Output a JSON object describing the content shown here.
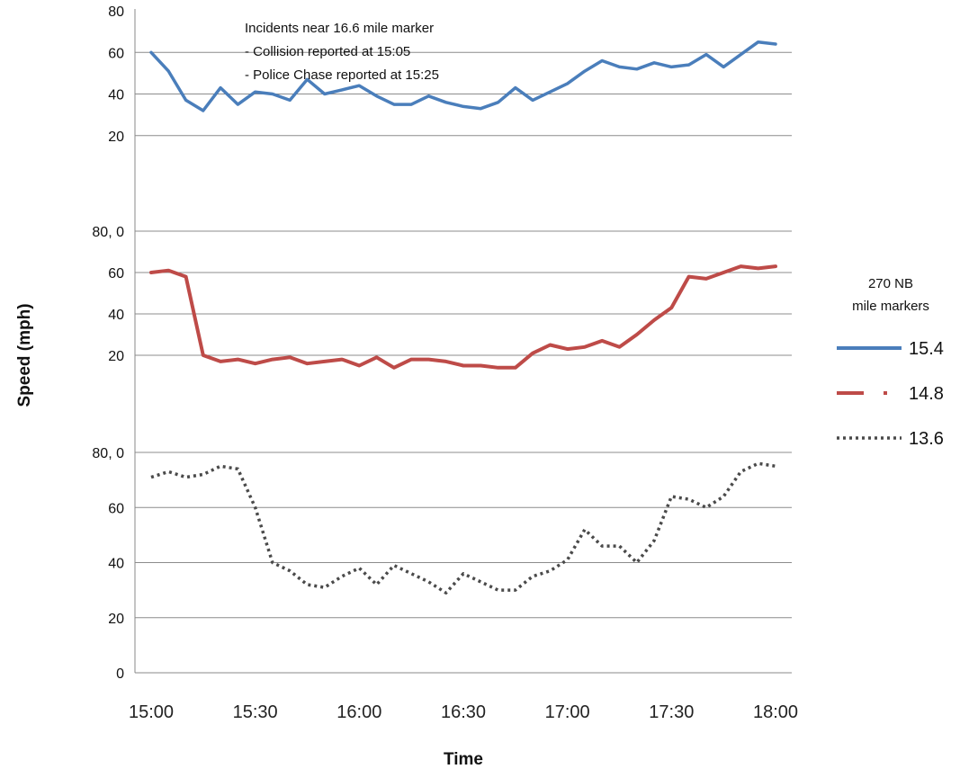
{
  "chart_data": {
    "type": "line",
    "xlabel": "Time",
    "ylabel": "Speed (mph)",
    "x_tick_labels": [
      "15:00",
      "15:30",
      "16:00",
      "16:30",
      "17:00",
      "17:30",
      "18:00"
    ],
    "x_tick_minutes": [
      0,
      30,
      60,
      90,
      120,
      150,
      180
    ],
    "x_range_minutes": [
      0,
      180
    ],
    "y_range": [
      0,
      80
    ],
    "panel_tick_labels": [
      [
        "80",
        "60",
        "40",
        "20"
      ],
      [
        "80, 0",
        "60",
        "40",
        "20"
      ],
      [
        "80, 0",
        "60",
        "40",
        "20",
        "0"
      ]
    ],
    "annotation": {
      "lines": [
        "Incidents near 16.6  mile marker",
        "- Collision reported at 15:05",
        "- Police Chase reported at 15:25"
      ]
    },
    "legend": {
      "title_lines": [
        "270 NB",
        "mile markers"
      ],
      "placement": "right"
    },
    "grid": true,
    "series": [
      {
        "name": "15.4",
        "color": "#4a7ebb",
        "style": "solid",
        "x": [
          "15:00",
          "15:05",
          "15:10",
          "15:15",
          "15:20",
          "15:25",
          "15:30",
          "15:35",
          "15:40",
          "15:45",
          "15:50",
          "15:55",
          "16:00",
          "16:05",
          "16:10",
          "16:15",
          "16:20",
          "16:25",
          "16:30",
          "16:35",
          "16:40",
          "16:45",
          "16:50",
          "16:55",
          "17:00",
          "17:05",
          "17:10",
          "17:15",
          "17:20",
          "17:25",
          "17:30",
          "17:35",
          "17:40",
          "17:45",
          "17:50",
          "17:55",
          "18:00"
        ],
        "values": [
          60,
          51,
          37,
          32,
          43,
          35,
          41,
          40,
          37,
          47,
          40,
          42,
          44,
          39,
          35,
          35,
          39,
          36,
          34,
          33,
          36,
          43,
          37,
          41,
          45,
          51,
          56,
          53,
          52,
          55,
          53,
          54,
          59,
          53,
          59,
          65,
          64
        ]
      },
      {
        "name": "14.8",
        "color": "#be4b48",
        "style": "dashed",
        "x": [
          "15:00",
          "15:05",
          "15:10",
          "15:15",
          "15:20",
          "15:25",
          "15:30",
          "15:35",
          "15:40",
          "15:45",
          "15:50",
          "15:55",
          "16:00",
          "16:05",
          "16:10",
          "16:15",
          "16:20",
          "16:25",
          "16:30",
          "16:35",
          "16:40",
          "16:45",
          "16:50",
          "16:55",
          "17:00",
          "17:05",
          "17:10",
          "17:15",
          "17:20",
          "17:25",
          "17:30",
          "17:35",
          "17:40",
          "17:45",
          "17:50",
          "17:55",
          "18:00"
        ],
        "values": [
          60,
          61,
          58,
          20,
          17,
          18,
          16,
          18,
          19,
          16,
          17,
          18,
          15,
          19,
          14,
          18,
          18,
          17,
          15,
          15,
          14,
          14,
          21,
          25,
          23,
          24,
          27,
          24,
          30,
          37,
          43,
          58,
          57,
          60,
          63,
          62,
          63
        ]
      },
      {
        "name": "13.6",
        "color": "#4a4a4a",
        "style": "dotted",
        "x": [
          "15:00",
          "15:05",
          "15:10",
          "15:15",
          "15:20",
          "15:25",
          "15:30",
          "15:35",
          "15:40",
          "15:45",
          "15:50",
          "15:55",
          "16:00",
          "16:05",
          "16:10",
          "16:15",
          "16:20",
          "16:25",
          "16:30",
          "16:35",
          "16:40",
          "16:45",
          "16:50",
          "16:55",
          "17:00",
          "17:05",
          "17:10",
          "17:15",
          "17:20",
          "17:25",
          "17:30",
          "17:35",
          "17:40",
          "17:45",
          "17:50",
          "17:55",
          "18:00"
        ],
        "values": [
          71,
          73,
          71,
          72,
          75,
          74,
          60,
          40,
          37,
          32,
          31,
          35,
          38,
          32,
          39,
          36,
          33,
          29,
          36,
          33,
          30,
          30,
          35,
          37,
          41,
          52,
          46,
          46,
          40,
          48,
          64,
          63,
          60,
          64,
          73,
          76,
          75
        ]
      }
    ]
  }
}
